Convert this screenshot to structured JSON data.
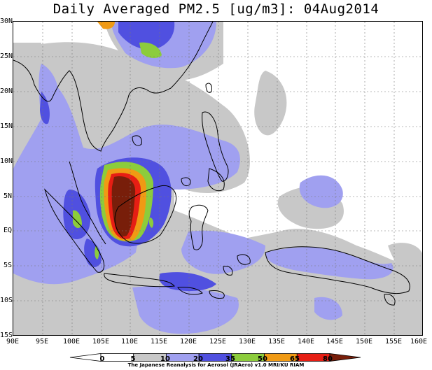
{
  "title": "Daily Averaged PM2.5 [ug/m3]: 04Aug2014",
  "lat_labels": [
    "30N",
    "25N",
    "20N",
    "15N",
    "10N",
    "5N",
    "EQ",
    "5S",
    "10S",
    "15S"
  ],
  "lon_labels": [
    "90E",
    "95E",
    "100E",
    "105E",
    "110E",
    "115E",
    "120E",
    "125E",
    "130E",
    "135E",
    "140E",
    "145E",
    "150E",
    "155E",
    "160E"
  ],
  "colorbar": {
    "levels": [
      "0",
      "5",
      "10",
      "20",
      "35",
      "50",
      "65",
      "80"
    ],
    "colors": [
      "#ffffff",
      "#ffffff",
      "#c8c8c8",
      "#a0a0f0",
      "#5050e0",
      "#8ccc3c",
      "#f09a14",
      "#e61e14",
      "#781e0a"
    ]
  },
  "credit": "The Japanese Reanalysis for Aerosol (JRAero) v1.0 MRI/KU RIAM",
  "colors": {
    "light_gray": "#c8c8c8",
    "light_blue": "#a0a0f0",
    "blue": "#5050e0",
    "green": "#8ccc3c",
    "orange": "#f09a14",
    "red": "#e61e14",
    "dark_red": "#781e0a"
  }
}
